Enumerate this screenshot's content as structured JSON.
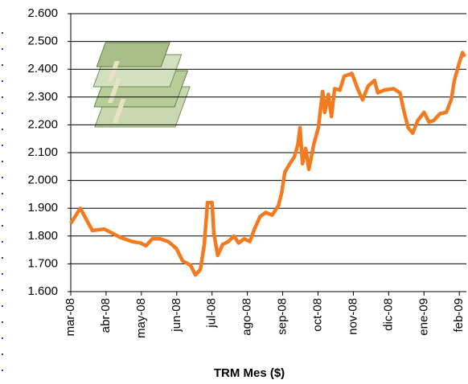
{
  "chart_data": {
    "type": "line",
    "x_label": "TRM Mes ($)",
    "x": [
      0,
      0.27,
      0.61,
      0.95,
      1.18,
      1.4,
      1.74,
      1.97,
      2.13,
      2.31,
      2.53,
      2.76,
      2.99,
      3.17,
      3.39,
      3.53,
      3.67,
      3.78,
      3.87,
      4.0,
      4.05,
      4.16,
      4.3,
      4.46,
      4.62,
      4.75,
      4.91,
      5.07,
      5.2,
      5.36,
      5.52,
      5.7,
      5.88,
      5.97,
      6.06,
      6.2,
      6.33,
      6.43,
      6.49,
      6.56,
      6.65,
      6.74,
      6.88,
      7.01,
      7.13,
      7.19,
      7.29,
      7.38,
      7.47,
      7.62,
      7.74,
      7.96,
      8.12,
      8.26,
      8.42,
      8.6,
      8.69,
      8.87,
      9.14,
      9.32,
      9.43,
      9.55,
      9.68,
      9.82,
      10.0,
      10.14,
      10.27,
      10.45,
      10.63,
      10.77,
      10.86,
      10.99,
      11.09,
      11.15
    ],
    "series": [
      {
        "color": "#f47a20",
        "values": [
          1845,
          1900,
          1820,
          1825,
          1810,
          1795,
          1780,
          1775,
          1765,
          1790,
          1790,
          1780,
          1755,
          1710,
          1695,
          1660,
          1680,
          1770,
          1920,
          1920,
          1810,
          1730,
          1770,
          1780,
          1800,
          1775,
          1790,
          1780,
          1825,
          1870,
          1885,
          1875,
          1910,
          1955,
          2030,
          2060,
          2085,
          2130,
          2190,
          2060,
          2115,
          2040,
          2130,
          2190,
          2320,
          2245,
          2310,
          2230,
          2330,
          2325,
          2375,
          2385,
          2330,
          2290,
          2340,
          2360,
          2315,
          2325,
          2330,
          2315,
          2250,
          2190,
          2170,
          2215,
          2245,
          2210,
          2215,
          2240,
          2245,
          2290,
          2360,
          2420,
          2460,
          2445
        ]
      }
    ],
    "xlim": [
      0,
      11.2
    ],
    "xticks": [
      {
        "value": 0,
        "label": "mar-08"
      },
      {
        "value": 1,
        "label": "abr-08"
      },
      {
        "value": 2,
        "label": "may-08"
      },
      {
        "value": 3,
        "label": "jun-08"
      },
      {
        "value": 4,
        "label": "jul-08"
      },
      {
        "value": 5,
        "label": "ago-08"
      },
      {
        "value": 6,
        "label": "sep-08"
      },
      {
        "value": 7,
        "label": "oct-08"
      },
      {
        "value": 8,
        "label": "nov-08"
      },
      {
        "value": 9,
        "label": "dic-08"
      },
      {
        "value": 10,
        "label": "ene-09"
      },
      {
        "value": 11,
        "label": "feb-09"
      }
    ],
    "ylim": [
      1600,
      2600
    ],
    "yticks": [
      {
        "value": 1600,
        "label": "1.600"
      },
      {
        "value": 1700,
        "label": "1.700"
      },
      {
        "value": 1800,
        "label": "1.800"
      },
      {
        "value": 1900,
        "label": "1.900"
      },
      {
        "value": 2000,
        "label": "2.000"
      },
      {
        "value": 2100,
        "label": "2.100"
      },
      {
        "value": 2200,
        "label": "2.200"
      },
      {
        "value": 2300,
        "label": "2.300"
      },
      {
        "value": 2400,
        "label": "2.400"
      },
      {
        "value": 2500,
        "label": "2.500"
      },
      {
        "value": 2600,
        "label": "2.600"
      }
    ],
    "grid": true
  }
}
